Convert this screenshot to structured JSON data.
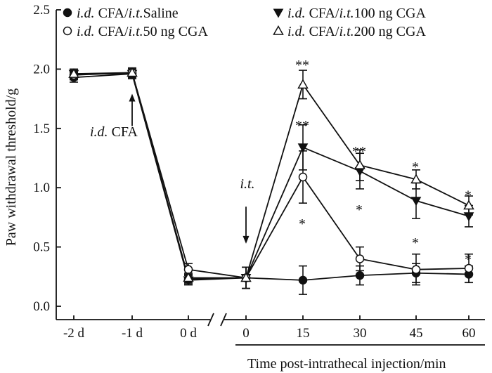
{
  "chart_data": {
    "type": "line",
    "ylabel": "Paw withdrawal threshold/g",
    "xlabel": "Time post-intrathecal injection/min",
    "ylim": [
      0.0,
      2.5
    ],
    "yticks": [
      "0.0",
      "0.5",
      "1.0",
      "1.5",
      "2.0",
      "2.5"
    ],
    "xticks": [
      "-2 d",
      "-1 d",
      "0 d",
      "0",
      "15",
      "30",
      "45",
      "60"
    ],
    "axis_break": "between 0 d and 0",
    "series": [
      {
        "name": "i.d. CFA/i.t.Saline",
        "legend_italic_1": "i.d.",
        "legend_text_1": " CFA/",
        "legend_italic_2": "i.t.",
        "legend_text_2": "Saline",
        "marker": "filled-circle",
        "values": [
          1.93,
          1.96,
          0.23,
          0.24,
          0.22,
          0.26,
          0.28,
          0.27
        ],
        "errors": [
          0.04,
          0.04,
          0.04,
          0.09,
          0.12,
          0.08,
          0.08,
          0.07
        ]
      },
      {
        "name": "i.d. CFA/i.t.50 ng CGA",
        "legend_italic_1": "i.d.",
        "legend_text_1": " CFA/",
        "legend_italic_2": "i.t.",
        "legend_text_2": "50 ng CGA",
        "marker": "open-circle",
        "values": [
          1.95,
          1.97,
          0.31,
          0.24,
          1.09,
          0.4,
          0.31,
          0.32
        ],
        "errors": [
          0.04,
          0.04,
          0.05,
          0.09,
          0.22,
          0.1,
          0.13,
          0.12
        ]
      },
      {
        "name": "i.d. CFA/i.t.100 ng CGA",
        "legend_italic_1": "i.d.",
        "legend_text_1": " CFA/",
        "legend_italic_2": "i.t.",
        "legend_text_2": "100 ng CGA",
        "marker": "filled-triangle-down",
        "values": [
          1.96,
          1.96,
          0.22,
          0.24,
          1.34,
          1.14,
          0.89,
          0.76
        ],
        "errors": [
          0.04,
          0.04,
          0.04,
          0.09,
          0.19,
          0.15,
          0.15,
          0.09
        ]
      },
      {
        "name": "i.d. CFA/i.t.200 ng CGA",
        "legend_italic_1": "i.d.",
        "legend_text_1": " CFA/",
        "legend_italic_2": "i.t.",
        "legend_text_2": "200 ng CGA",
        "marker": "open-triangle-up",
        "values": [
          1.96,
          1.97,
          0.24,
          0.24,
          1.87,
          1.19,
          1.07,
          0.85
        ],
        "errors": [
          0.04,
          0.04,
          0.04,
          0.09,
          0.12,
          0.13,
          0.08,
          0.08
        ]
      }
    ],
    "annotations": [
      {
        "x_index": 4,
        "value": 2.08,
        "text": "**"
      },
      {
        "x_index": 4,
        "value": 1.57,
        "text": "**"
      },
      {
        "x_index": 4,
        "value": 0.74,
        "text": "*"
      },
      {
        "x_index": 5,
        "value": 1.35,
        "text": "**"
      },
      {
        "x_index": 5,
        "value": 0.86,
        "text": "*"
      },
      {
        "x_index": 6,
        "value": 1.22,
        "text": "*"
      },
      {
        "x_index": 6,
        "value": 0.58,
        "text": "*"
      },
      {
        "x_index": 7,
        "value": 0.98,
        "text": "*"
      },
      {
        "x_index": 7,
        "value": 0.44,
        "text": "*"
      }
    ],
    "arrows": [
      {
        "label_italic": "i.d.",
        "label_text": " CFA",
        "x_index": 1,
        "from_value": 1.52,
        "to_value": 1.78
      },
      {
        "label_italic": "i.t.",
        "label_text": "",
        "x_index": 3,
        "from_value": 0.84,
        "to_value": 0.54
      }
    ]
  }
}
